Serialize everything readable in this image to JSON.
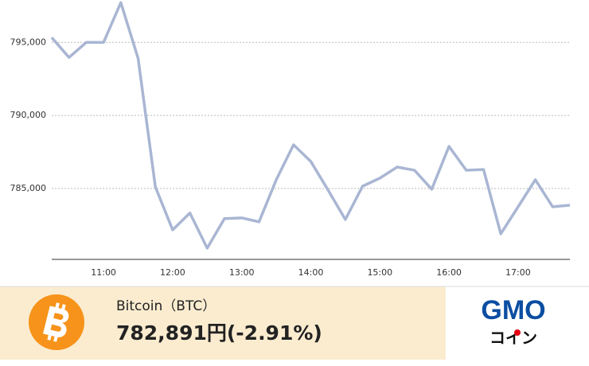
{
  "chart_data": {
    "type": "line",
    "categories": [
      null,
      null,
      null,
      "11:00",
      null,
      null,
      null,
      "12:00",
      null,
      null,
      null,
      "13:00",
      null,
      null,
      null,
      "14:00",
      null,
      null,
      null,
      "15:00",
      null,
      null,
      null,
      "16:00",
      null,
      null,
      null,
      "17:00",
      null,
      null,
      null
    ],
    "series": [
      {
        "color": "#a9b6d3",
        "values": [
          795330,
          793970,
          795000,
          795000,
          797720,
          793910,
          785110,
          782170,
          783320,
          780920,
          782940,
          782990,
          782720,
          785600,
          787990,
          786850,
          784890,
          782880,
          785160,
          785710,
          786470,
          786250,
          784950,
          787880,
          786250,
          786300,
          781900,
          783750,
          785600,
          783750,
          783860
        ]
      }
    ],
    "ylim": [
      780150,
      797900
    ],
    "yticks": [
      {
        "value": 785000,
        "label": "785,000"
      },
      {
        "value": 790000,
        "label": "790,000"
      },
      {
        "value": 795000,
        "label": "795,000"
      }
    ],
    "grid": true
  },
  "footer": {
    "name": "Bitcoin（BTC）",
    "price": "782,891円(-2.91%)"
  },
  "logo": {
    "top": "GMO",
    "bottom": "コイン"
  }
}
